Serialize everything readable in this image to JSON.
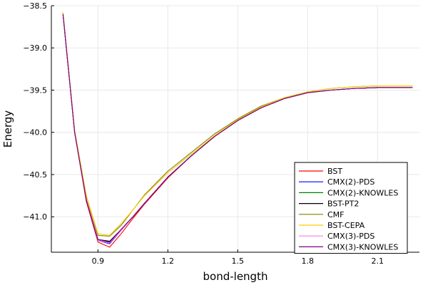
{
  "chart_data": {
    "type": "line",
    "xlabel": "bond-length",
    "ylabel": "Energy",
    "xlim": [
      0.7,
      2.28
    ],
    "ylim": [
      -41.42,
      -38.5
    ],
    "xticks": [
      0.9,
      1.2,
      1.5,
      1.8,
      2.1
    ],
    "xtick_labels": [
      "0.9",
      "1.2",
      "1.5",
      "1.8",
      "2.1"
    ],
    "yticks": [
      -38.5,
      -39.0,
      -39.5,
      -40.0,
      -40.5,
      -41.0
    ],
    "ytick_labels": [
      "−38.5",
      "−39.0",
      "−39.5",
      "−40.0",
      "−40.5",
      "−41.0"
    ],
    "grid": true,
    "legend_position": "bottom-right",
    "series": [
      {
        "name": "BST",
        "color": "#ff0000",
        "x": [
          0.75,
          0.8,
          0.85,
          0.9,
          0.95,
          1.0,
          1.05,
          1.1,
          1.2,
          1.3,
          1.4,
          1.5,
          1.6,
          1.7,
          1.8,
          1.9,
          2.0,
          2.1,
          2.25
        ],
        "y": [
          -38.6,
          -40.0,
          -40.82,
          -41.3,
          -41.36,
          -41.2,
          -41.02,
          -40.85,
          -40.54,
          -40.28,
          -40.05,
          -39.86,
          -39.71,
          -39.6,
          -39.53,
          -39.5,
          -39.48,
          -39.47,
          -39.47
        ]
      },
      {
        "name": "CMX(2)-PDS",
        "color": "#0000ff",
        "x": [
          0.75,
          0.8,
          0.85,
          0.9,
          0.95,
          1.0,
          1.05,
          1.1,
          1.2,
          1.3,
          1.4,
          1.5,
          1.6,
          1.7,
          1.8,
          1.9,
          2.0,
          2.1,
          2.25
        ],
        "y": [
          -38.6,
          -40.0,
          -40.8,
          -41.28,
          -41.32,
          -41.16,
          -41.0,
          -40.84,
          -40.53,
          -40.28,
          -40.05,
          -39.86,
          -39.71,
          -39.6,
          -39.53,
          -39.5,
          -39.48,
          -39.47,
          -39.47
        ]
      },
      {
        "name": "CMX(2)-KNOWLES",
        "color": "#008000",
        "x": [
          0.75,
          0.8,
          0.85,
          0.9,
          0.95,
          1.0,
          1.05,
          1.1,
          1.2,
          1.3,
          1.4,
          1.5,
          1.6,
          1.7,
          1.8,
          1.9,
          2.0,
          2.1,
          2.25
        ],
        "y": [
          -38.6,
          -40.0,
          -40.8,
          -41.27,
          -41.3,
          -41.15,
          -41.0,
          -40.84,
          -40.53,
          -40.28,
          -40.05,
          -39.86,
          -39.71,
          -39.6,
          -39.53,
          -39.5,
          -39.48,
          -39.47,
          -39.47
        ]
      },
      {
        "name": "BST-PT2",
        "color": "#000000",
        "x": [
          0.75,
          0.8,
          0.85,
          0.9,
          0.95,
          1.0,
          1.05,
          1.1,
          1.2,
          1.3,
          1.4,
          1.5,
          1.6,
          1.7,
          1.8,
          1.9,
          2.0,
          2.1,
          2.25
        ],
        "y": [
          -38.6,
          -40.0,
          -40.8,
          -41.27,
          -41.29,
          -41.15,
          -41.0,
          -40.84,
          -40.53,
          -40.28,
          -40.05,
          -39.86,
          -39.71,
          -39.6,
          -39.53,
          -39.5,
          -39.48,
          -39.47,
          -39.47
        ]
      },
      {
        "name": "CMF",
        "color": "#808000",
        "x": [
          0.75,
          0.8,
          0.85,
          0.9,
          0.95,
          1.0,
          1.05,
          1.1,
          1.2,
          1.3,
          1.4,
          1.5,
          1.6,
          1.7,
          1.8,
          1.9,
          2.0,
          2.1,
          2.25
        ],
        "y": [
          -38.58,
          -39.98,
          -40.75,
          -41.22,
          -41.23,
          -41.1,
          -40.92,
          -40.74,
          -40.46,
          -40.24,
          -40.02,
          -39.84,
          -39.69,
          -39.59,
          -39.52,
          -39.48,
          -39.46,
          -39.45,
          -39.45
        ]
      },
      {
        "name": "BST-CEPA",
        "color": "#ffcc00",
        "x": [
          0.75,
          0.8,
          0.85,
          0.9,
          0.95,
          1.0,
          1.05,
          1.1,
          1.2,
          1.3,
          1.4,
          1.5,
          1.6,
          1.7,
          1.8,
          1.9,
          2.0,
          2.1,
          2.25
        ],
        "y": [
          -38.58,
          -39.98,
          -40.75,
          -41.2,
          -41.22,
          -41.08,
          -40.92,
          -40.75,
          -40.48,
          -40.26,
          -40.04,
          -39.85,
          -39.7,
          -39.59,
          -39.52,
          -39.48,
          -39.46,
          -39.45,
          -39.45
        ]
      },
      {
        "name": "CMX(3)-PDS",
        "color": "#ee82ee",
        "x": [
          0.75,
          0.8,
          0.85,
          0.9,
          0.95,
          1.0,
          1.05,
          1.1,
          1.2,
          1.3,
          1.4,
          1.5,
          1.6,
          1.7,
          1.8,
          1.9,
          2.0,
          2.1,
          2.25
        ],
        "y": [
          -38.6,
          -40.0,
          -40.8,
          -41.28,
          -41.31,
          -41.16,
          -41.0,
          -40.84,
          -40.53,
          -40.28,
          -40.05,
          -39.86,
          -39.71,
          -39.6,
          -39.53,
          -39.5,
          -39.48,
          -39.47,
          -39.47
        ]
      },
      {
        "name": "CMX(3)-KNOWLES",
        "color": "#800080",
        "x": [
          0.75,
          0.8,
          0.85,
          0.9,
          0.95,
          1.0,
          1.05,
          1.1,
          1.2,
          1.3,
          1.4,
          1.5,
          1.6,
          1.7,
          1.8,
          1.9,
          2.0,
          2.1,
          2.25
        ],
        "y": [
          -38.6,
          -40.0,
          -40.8,
          -41.27,
          -41.3,
          -41.15,
          -41.0,
          -40.84,
          -40.53,
          -40.28,
          -40.05,
          -39.86,
          -39.71,
          -39.6,
          -39.53,
          -39.5,
          -39.48,
          -39.47,
          -39.47
        ]
      }
    ]
  }
}
